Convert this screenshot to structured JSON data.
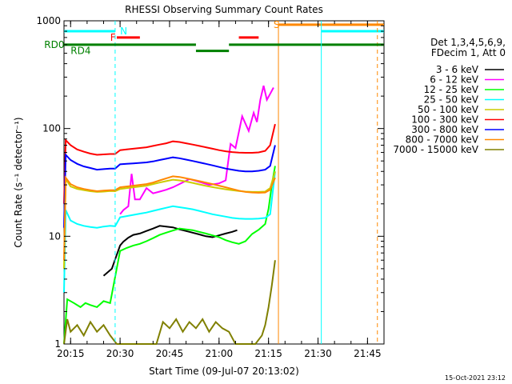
{
  "chart_data": {
    "type": "line",
    "title": "RHESSI Observing Summary Count Rates",
    "xlabel": "Start Time (09-Jul-07 20:13:02)",
    "ylabel": "Count Rate (s⁻¹ detector⁻¹)",
    "x_unit": "minutes after 20:13:02",
    "xlim": [
      0,
      97
    ],
    "ylim": [
      1,
      1000
    ],
    "yscale": "log",
    "x_ticks": [
      {
        "x": 2,
        "label": "20:15"
      },
      {
        "x": 17,
        "label": "20:30"
      },
      {
        "x": 32,
        "label": "20:45"
      },
      {
        "x": 47,
        "label": "21:00"
      },
      {
        "x": 62,
        "label": "21:15"
      },
      {
        "x": 77,
        "label": "21:30"
      },
      {
        "x": 92,
        "label": "21:45"
      }
    ],
    "y_ticks": [
      {
        "y": 1,
        "label": "1"
      },
      {
        "y": 10,
        "label": "10"
      },
      {
        "y": 100,
        "label": "100"
      },
      {
        "y": 1000,
        "label": "1000"
      }
    ],
    "legend": {
      "placement": "right",
      "header": [
        "Det 1,3,4,5,6,9,",
        "FDecim 1, Att 0"
      ]
    },
    "series": [
      {
        "name": "3 - 6 keV",
        "color": "#000000",
        "x": [
          12,
          14.5,
          17,
          18,
          19.5,
          21,
          23,
          25,
          27,
          29,
          31,
          33,
          35,
          38,
          41,
          43,
          45,
          47,
          49,
          51,
          52.5
        ],
        "y": [
          4.3,
          5.0,
          8.2,
          8.9,
          9.7,
          10.3,
          10.6,
          11.2,
          11.8,
          12.5,
          12.3,
          12.1,
          11.6,
          11.0,
          10.4,
          10.0,
          9.8,
          10.2,
          10.6,
          11.0,
          11.4
        ]
      },
      {
        "name": "6 - 12 keV",
        "color": "#ff00ff",
        "x": [
          17,
          18,
          19.5,
          20.5,
          21.5,
          23,
          25,
          27,
          29,
          31,
          33,
          35,
          38,
          41,
          44,
          47,
          49,
          50.5,
          52,
          54,
          56,
          57.5,
          58.5,
          59.5,
          60.5,
          61.5,
          62.5,
          63.5
        ],
        "y": [
          16.0,
          17.5,
          19.0,
          38.0,
          22.0,
          22.0,
          28.0,
          25.0,
          26.0,
          27.0,
          28.5,
          30.5,
          34.0,
          32.0,
          30.0,
          31.0,
          33.0,
          72.0,
          66.0,
          130.0,
          95.0,
          140.0,
          115.0,
          185.0,
          250.0,
          185.0,
          210.0,
          240.0
        ]
      },
      {
        "name": "12 - 25 keV",
        "color": "#00ff00",
        "x": [
          0,
          1,
          3,
          5,
          6.5,
          8,
          10,
          12,
          14,
          17,
          19,
          21,
          23,
          25,
          27,
          29,
          31,
          33,
          35,
          37,
          39,
          41,
          43,
          45,
          47,
          49,
          51,
          53,
          55,
          57,
          59,
          61,
          62,
          63,
          64
        ],
        "y": [
          1.0,
          2.6,
          2.4,
          2.2,
          2.4,
          2.3,
          2.2,
          2.5,
          2.4,
          7.3,
          7.8,
          8.2,
          8.5,
          9.0,
          9.6,
          10.3,
          10.8,
          11.3,
          11.8,
          11.6,
          11.4,
          11.0,
          10.6,
          10.2,
          9.8,
          9.2,
          8.8,
          8.5,
          9.0,
          10.5,
          11.5,
          13.0,
          18.0,
          30.0,
          45.0
        ]
      },
      {
        "name": "25 - 50 keV",
        "color": "#00ffff",
        "x": [
          0,
          0.5,
          2,
          4,
          6,
          8,
          10,
          12,
          14,
          15.5,
          17,
          19,
          21,
          23,
          25,
          27,
          29,
          31,
          33,
          35,
          37,
          39,
          41,
          43,
          45,
          47,
          49,
          51,
          53,
          55,
          57,
          59,
          61,
          62.5,
          64
        ],
        "y": [
          3.0,
          17.5,
          14.0,
          13.0,
          12.5,
          12.2,
          12.0,
          12.3,
          12.5,
          12.4,
          15.0,
          15.4,
          15.8,
          16.2,
          16.6,
          17.2,
          17.8,
          18.4,
          19.0,
          18.6,
          18.2,
          17.8,
          17.2,
          16.6,
          16.0,
          15.6,
          15.2,
          14.8,
          14.6,
          14.5,
          14.5,
          14.6,
          14.8,
          16.0,
          40.0
        ]
      },
      {
        "name": "50 - 100 keV",
        "color": "#cccc00",
        "x": [
          0,
          0.5,
          2,
          4,
          6,
          8,
          10,
          12,
          14,
          15.5,
          17,
          19,
          21,
          23,
          25,
          27,
          29,
          31,
          33,
          35,
          37,
          39,
          41,
          43,
          45,
          47,
          49,
          51,
          53,
          55,
          57,
          59,
          61,
          62.5,
          64
        ],
        "y": [
          5.0,
          34.0,
          29.0,
          27.5,
          26.8,
          26.2,
          25.8,
          26.0,
          26.3,
          26.2,
          27.5,
          28.0,
          28.5,
          29.0,
          29.5,
          30.5,
          31.5,
          32.5,
          33.5,
          33.0,
          32.2,
          31.3,
          30.3,
          29.4,
          28.6,
          27.9,
          27.3,
          26.8,
          26.3,
          26.0,
          25.8,
          25.8,
          26.0,
          28.0,
          40.0
        ]
      },
      {
        "name": "100 - 300 keV",
        "color": "#ff0000",
        "x": [
          0,
          0.5,
          2,
          4,
          6,
          8,
          10,
          12,
          14,
          15.5,
          17,
          19,
          21,
          23,
          25,
          27,
          29,
          31,
          33,
          35,
          37,
          39,
          41,
          43,
          45,
          47,
          49,
          51,
          53,
          55,
          57,
          59,
          61,
          62.5,
          64
        ],
        "y": [
          20.0,
          78.0,
          70.0,
          64.0,
          61.0,
          58.5,
          57.0,
          57.5,
          58.0,
          58.0,
          63.0,
          64.0,
          65.0,
          66.0,
          67.0,
          69.0,
          71.0,
          73.0,
          76.0,
          75.0,
          73.0,
          71.0,
          69.0,
          67.0,
          65.0,
          63.0,
          61.5,
          60.5,
          59.8,
          59.5,
          59.5,
          60.0,
          62.0,
          70.0,
          110.0
        ]
      },
      {
        "name": "300 - 800 keV",
        "color": "#0000ff",
        "x": [
          0,
          0.5,
          2,
          4,
          6,
          8,
          10,
          12,
          14,
          15.5,
          17,
          19,
          21,
          23,
          25,
          27,
          29,
          31,
          33,
          35,
          37,
          39,
          41,
          43,
          45,
          47,
          49,
          51,
          53,
          55,
          57,
          59,
          61,
          62.5,
          64
        ],
        "y": [
          12.0,
          57.0,
          51.0,
          47.0,
          44.5,
          43.0,
          41.5,
          42.0,
          42.5,
          42.5,
          46.5,
          47.0,
          47.5,
          48.0,
          48.5,
          49.5,
          51.0,
          52.5,
          54.0,
          53.0,
          51.5,
          50.0,
          48.5,
          47.0,
          45.5,
          44.0,
          42.5,
          41.5,
          40.5,
          40.0,
          40.0,
          40.5,
          41.5,
          45.0,
          70.0
        ]
      },
      {
        "name": "800 - 7000 keV",
        "color": "#ff8800",
        "x": [
          0,
          0.5,
          2,
          4,
          6,
          8,
          10,
          12,
          14,
          15.5,
          17,
          19,
          21,
          23,
          25,
          27,
          29,
          31,
          33,
          35,
          37,
          39,
          41,
          43,
          45,
          47,
          49,
          51,
          53,
          55,
          57,
          59,
          61,
          62.5,
          64
        ],
        "y": [
          6.0,
          35.0,
          30.5,
          28.5,
          27.5,
          26.8,
          26.2,
          26.5,
          26.8,
          26.8,
          28.5,
          29.0,
          29.5,
          30.0,
          30.5,
          31.5,
          33.0,
          34.5,
          36.0,
          35.5,
          34.5,
          33.5,
          32.5,
          31.5,
          30.5,
          29.5,
          28.5,
          27.5,
          26.5,
          25.8,
          25.5,
          25.3,
          25.5,
          27.0,
          35.0
        ]
      },
      {
        "name": "7000 - 15000 keV",
        "color": "#808000",
        "x": [
          0,
          1,
          2,
          4,
          6,
          8,
          10,
          12,
          14,
          16,
          18,
          20,
          22,
          24,
          26,
          28,
          30,
          32,
          34,
          36,
          38,
          40,
          42,
          44,
          46,
          48,
          50,
          52,
          54,
          56,
          58,
          60,
          61,
          62,
          63,
          64
        ],
        "y": [
          1.0,
          1.7,
          1.3,
          1.5,
          1.2,
          1.6,
          1.3,
          1.5,
          1.2,
          1.0,
          1.0,
          1.0,
          1.0,
          1.0,
          1.0,
          1.0,
          1.6,
          1.4,
          1.7,
          1.3,
          1.6,
          1.4,
          1.7,
          1.3,
          1.6,
          1.4,
          1.3,
          1.0,
          1.0,
          1.0,
          1.0,
          1.2,
          1.5,
          2.2,
          3.5,
          6.0
        ]
      }
    ],
    "flags": [
      {
        "label": "N",
        "color": "#00ffff",
        "y": 800,
        "segments": [
          [
            0,
            15.5
          ],
          [
            78,
            97
          ]
        ],
        "label_at": 17,
        "dashed_at": [
          15.5
        ]
      },
      {
        "label": "F",
        "color": "#ff0000",
        "y": 700,
        "segments": [
          [
            16,
            23
          ],
          [
            53,
            59
          ]
        ],
        "label_at": 14
      },
      {
        "label": "S",
        "color": "#ff8800",
        "y": 920,
        "segments": [
          [
            65,
            97
          ]
        ],
        "label_at": 63.5,
        "dashed_at": [
          95
        ],
        "solid_at": [
          65
        ]
      },
      {
        "label": "RD0",
        "color": "#008000",
        "y": 600,
        "segments": [
          [
            0,
            40
          ],
          [
            50,
            97
          ]
        ],
        "label_at": -6
      },
      {
        "label": "RD4",
        "color": "#008000",
        "y": 525,
        "segments": [
          [
            40,
            50
          ]
        ],
        "label_at": 2
      },
      {
        "label": "",
        "color": "#00ffff",
        "y": 1000,
        "segments": [],
        "solid_at": [
          78
        ]
      }
    ]
  },
  "timestamp": "15-Oct-2021 23:12"
}
